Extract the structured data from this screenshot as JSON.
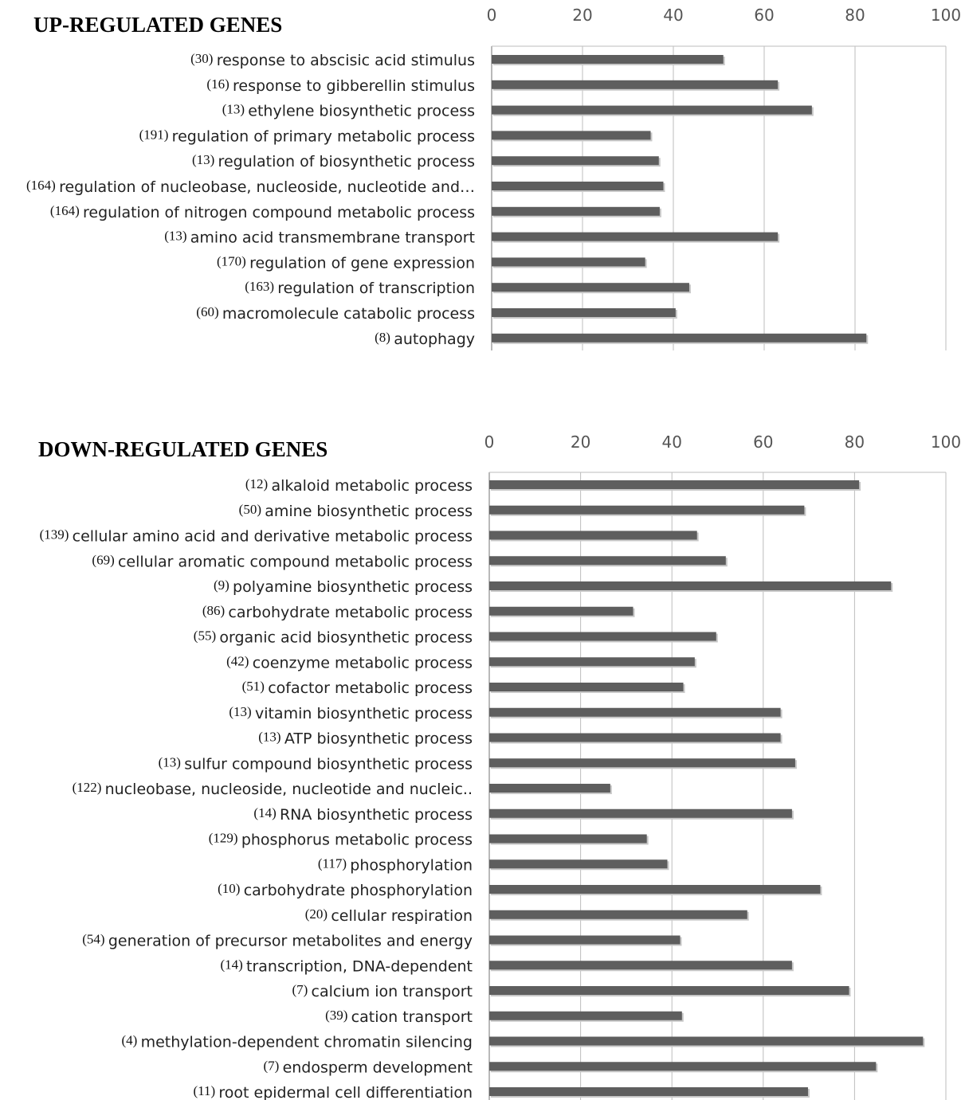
{
  "chart_data": [
    {
      "type": "bar",
      "orientation": "horizontal",
      "title": "UP-REGULATED GENES",
      "xlim": [
        0,
        100
      ],
      "xticks": [
        0,
        20,
        40,
        60,
        80,
        100
      ],
      "xaxis_position": "top",
      "grid": true,
      "categories": [
        {
          "count": "(30)",
          "label": "response to abscisic acid stimulus"
        },
        {
          "count": "(16)",
          "label": "response to gibberellin stimulus"
        },
        {
          "count": "(13)",
          "label": "ethylene biosynthetic process"
        },
        {
          "count": "(191)",
          "label": "regulation of primary metabolic process"
        },
        {
          "count": "(13)",
          "label": "regulation of biosynthetic process"
        },
        {
          "count": "(164)",
          "label": "regulation of nucleobase, nucleoside, nucleotide and…"
        },
        {
          "count": "(164)",
          "label": "regulation of nitrogen compound metabolic process"
        },
        {
          "count": "(13)",
          "label": "amino acid transmembrane transport"
        },
        {
          "count": "(170)",
          "label": "regulation of gene expression"
        },
        {
          "count": "(163)",
          "label": "regulation of transcription"
        },
        {
          "count": "(60)",
          "label": "macromolecule catabolic process"
        },
        {
          "count": "(8)",
          "label": "autophagy"
        }
      ],
      "values": [
        51,
        63,
        70.5,
        35,
        36.8,
        37.8,
        37,
        63,
        33.8,
        43.5,
        40.5,
        82.5
      ]
    },
    {
      "type": "bar",
      "orientation": "horizontal",
      "title": "DOWN-REGULATED GENES",
      "xlim": [
        0,
        100
      ],
      "xticks": [
        0,
        20,
        40,
        60,
        80,
        100
      ],
      "xaxis_position": "top",
      "grid": true,
      "categories": [
        {
          "count": "(12)",
          "label": "alkaloid metabolic process"
        },
        {
          "count": "(50)",
          "label": "amine biosynthetic process"
        },
        {
          "count": "(139)",
          "label": "cellular amino acid and derivative metabolic process"
        },
        {
          "count": "(69)",
          "label": "cellular aromatic compound metabolic process"
        },
        {
          "count": "(9)",
          "label": "polyamine biosynthetic process"
        },
        {
          "count": "(86)",
          "label": "carbohydrate metabolic process"
        },
        {
          "count": "(55)",
          "label": "organic acid biosynthetic process"
        },
        {
          "count": "(42)",
          "label": "coenzyme metabolic process"
        },
        {
          "count": "(51)",
          "label": "cofactor metabolic process"
        },
        {
          "count": "(13)",
          "label": "vitamin biosynthetic process"
        },
        {
          "count": "(13)",
          "label": "ATP biosynthetic process"
        },
        {
          "count": "(13)",
          "label": "sulfur compound biosynthetic process"
        },
        {
          "count": "(122)",
          "label": "nucleobase, nucleoside, nucleotide and nucleic.."
        },
        {
          "count": "(14)",
          "label": "RNA biosynthetic process"
        },
        {
          "count": "(129)",
          "label": "phosphorus metabolic process"
        },
        {
          "count": "(117)",
          "label": "phosphorylation"
        },
        {
          "count": "(10)",
          "label": "carbohydrate phosphorylation"
        },
        {
          "count": "(20)",
          "label": "cellular respiration"
        },
        {
          "count": "(54)",
          "label": "generation of precursor metabolites and energy"
        },
        {
          "count": "(14)",
          "label": "transcription, DNA-dependent"
        },
        {
          "count": "(7)",
          "label": "calcium ion transport"
        },
        {
          "count": "(39)",
          "label": "cation transport"
        },
        {
          "count": "(4)",
          "label": "methylation-dependent chromatin silencing"
        },
        {
          "count": "(7)",
          "label": "endosperm development"
        },
        {
          "count": "(11)",
          "label": "root epidermal cell differentiation"
        }
      ],
      "values": [
        81,
        69,
        45.5,
        51.8,
        88,
        31.5,
        49.7,
        45,
        42.5,
        63.8,
        63.8,
        67,
        26.5,
        66.3,
        34.5,
        39,
        72.5,
        56.5,
        41.8,
        66.3,
        78.8,
        42.2,
        95,
        84.7,
        69.8
      ]
    }
  ]
}
